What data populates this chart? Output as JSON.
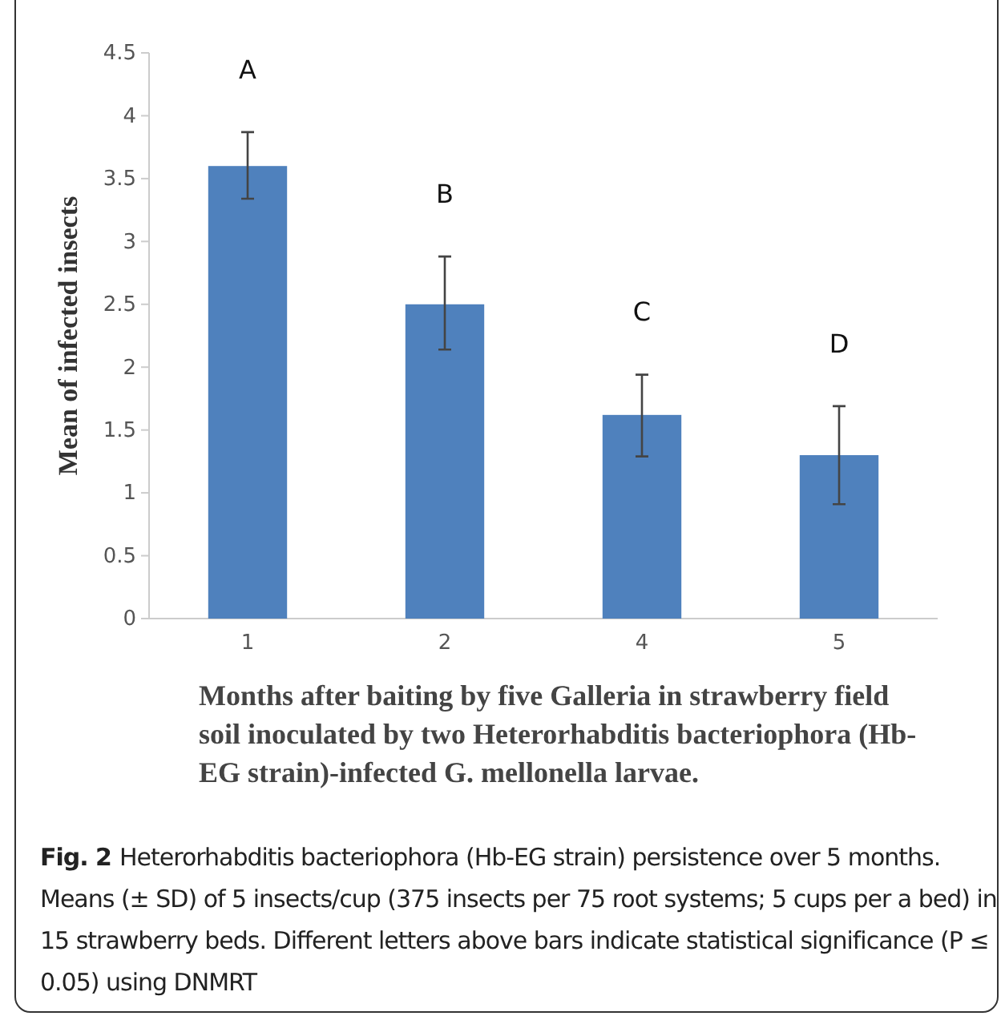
{
  "chart_data": {
    "type": "bar",
    "categories": [
      "1",
      "2",
      "4",
      "5"
    ],
    "values": [
      3.6,
      2.5,
      1.62,
      1.3
    ],
    "errors": [
      [
        3.34,
        3.87
      ],
      [
        2.14,
        2.88
      ],
      [
        1.29,
        1.94
      ],
      [
        0.91,
        1.69
      ]
    ],
    "color": "#4f81bd",
    "ylim": [
      0,
      4.5
    ],
    "yticks": [
      0,
      0.5,
      1,
      1.5,
      2,
      2.5,
      3,
      3.5,
      4,
      4.5
    ],
    "grid": false,
    "xlabel": "Months after baiting by five Galleria in strawberry field soil inoculated by two Heterorhabditis bacteriophora (Hb-EG strain)-infected G. mellonella larvae.",
    "ylabel": "Mean of infected insects",
    "annotations": [
      "A",
      "B",
      "C",
      "D",
      "Fig. 2",
      "Heterorhabditis bacteriophora (Hb-EG strain) persistence over 5 months. Means (± SD) of 5 insects/cup (375 insects per 75 root systems; 5 cups per a bed) in 15 strawberry beds. Different letters above bars indicate statistical significance (P ≤ 0.05) using DNMRT"
    ]
  }
}
